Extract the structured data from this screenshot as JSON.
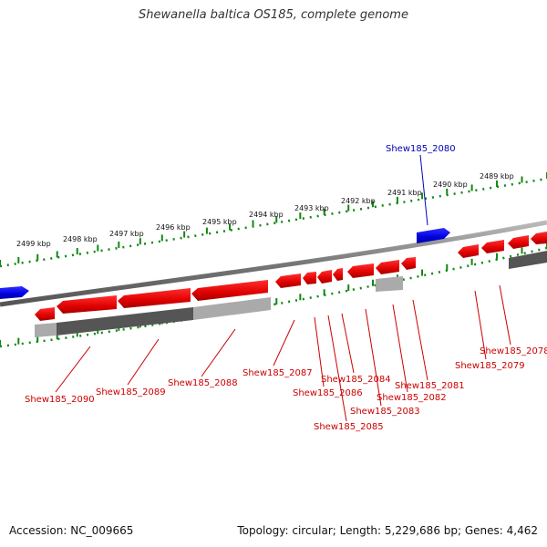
{
  "title": "Shewanella baltica OS185, complete genome",
  "footer": {
    "accession": "Accession: NC_009665",
    "summary": "Topology: circular; Length: 5,229,686 bp; Genes: 4,462"
  },
  "colors": {
    "reverse_gene": "#ee0000",
    "reverse_label": "#cc0000",
    "forward_gene": "#0000dd",
    "forward_label": "#0000bb",
    "tick": "#118811",
    "backbone": "#888888"
  },
  "scale_ticks_kbp": [
    "2499 kbp",
    "2498 kbp",
    "2497 kbp",
    "2496 kbp",
    "2495 kbp",
    "2494 kbp",
    "2493 kbp",
    "2492 kbp",
    "2491 kbp",
    "2490 kbp",
    "2489 kbp"
  ],
  "forward_genes": [
    {
      "label": "Shew185_2080"
    }
  ],
  "reverse_genes": [
    {
      "label": "Shew185_2090"
    },
    {
      "label": "Shew185_2089"
    },
    {
      "label": "Shew185_2088"
    },
    {
      "label": "Shew185_2087"
    },
    {
      "label": "Shew185_2086"
    },
    {
      "label": "Shew185_2085"
    },
    {
      "label": "Shew185_2084"
    },
    {
      "label": "Shew185_2083"
    },
    {
      "label": "Shew185_2082"
    },
    {
      "label": "Shew185_2081"
    },
    {
      "label": "Shew185_2079"
    },
    {
      "label": "Shew185_2078"
    }
  ]
}
